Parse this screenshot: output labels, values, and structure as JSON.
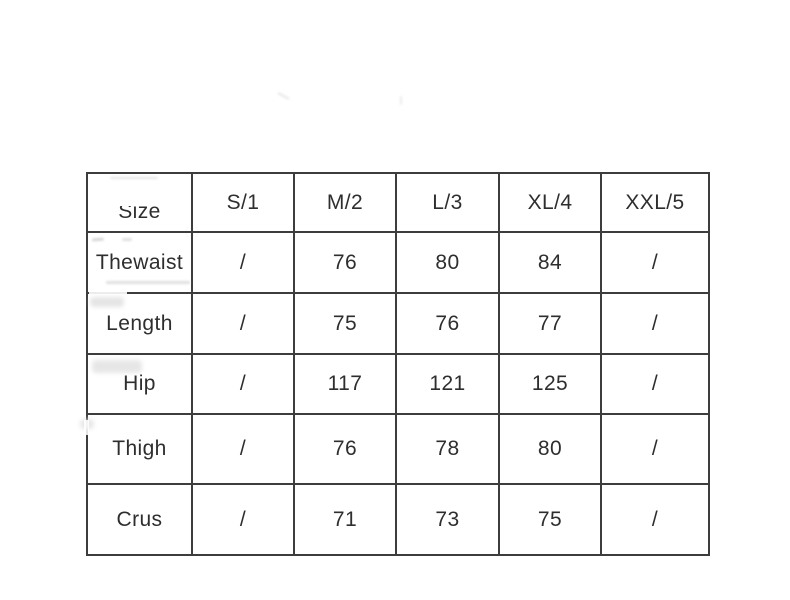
{
  "page": {
    "background_color": "#ffffff"
  },
  "chart_data": {
    "type": "table",
    "columns": [
      "Size",
      "S/1",
      "M/2",
      "L/3",
      "XL/4",
      "XXL/5"
    ],
    "rows": [
      [
        "Thewaist",
        "/",
        "76",
        "80",
        "84",
        "/"
      ],
      [
        "Length",
        "/",
        "75",
        "76",
        "77",
        "/"
      ],
      [
        "Hip",
        "/",
        "117",
        "121",
        "125",
        "/"
      ],
      [
        "Thigh",
        "/",
        "76",
        "78",
        "80",
        "/"
      ],
      [
        "Crus",
        "/",
        "71",
        "73",
        "75",
        "/"
      ]
    ],
    "layout": {
      "grid": true,
      "legend": "none",
      "value_alignment": "center",
      "label_alignment": "left"
    },
    "colors": {
      "border": "#3d3d3d",
      "text": "#2e2e2e",
      "background": "#ffffff"
    }
  }
}
